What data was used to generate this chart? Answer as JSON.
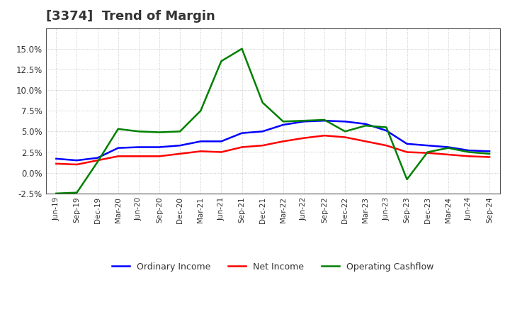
{
  "title": "[3374]  Trend of Margin",
  "x_labels": [
    "Jun-19",
    "Sep-19",
    "Dec-19",
    "Mar-20",
    "Jun-20",
    "Sep-20",
    "Dec-20",
    "Mar-21",
    "Jun-21",
    "Sep-21",
    "Dec-21",
    "Mar-22",
    "Jun-22",
    "Sep-22",
    "Dec-22",
    "Mar-23",
    "Jun-23",
    "Sep-23",
    "Dec-23",
    "Mar-24",
    "Jun-24",
    "Sep-24"
  ],
  "ordinary_income": [
    1.7,
    1.5,
    1.8,
    3.0,
    3.1,
    3.1,
    3.3,
    3.8,
    3.8,
    4.8,
    5.0,
    5.8,
    6.2,
    6.3,
    6.2,
    5.9,
    5.1,
    3.5,
    3.3,
    3.1,
    2.7,
    2.6
  ],
  "net_income": [
    1.1,
    1.0,
    1.5,
    2.0,
    2.0,
    2.0,
    2.3,
    2.6,
    2.5,
    3.1,
    3.3,
    3.8,
    4.2,
    4.5,
    4.3,
    3.8,
    3.3,
    2.5,
    2.4,
    2.2,
    2.0,
    1.9
  ],
  "operating_cashflow": [
    -2.5,
    -2.4,
    1.3,
    5.3,
    5.0,
    4.9,
    5.0,
    7.5,
    13.5,
    15.0,
    8.5,
    6.2,
    6.3,
    6.4,
    5.0,
    5.7,
    5.5,
    -0.8,
    2.5,
    3.0,
    2.5,
    2.3
  ],
  "ordinary_income_color": "#0000ff",
  "net_income_color": "#ff0000",
  "operating_cashflow_color": "#008000",
  "ylim": [
    -2.5,
    17.5
  ],
  "yticks": [
    -2.5,
    0.0,
    2.5,
    5.0,
    7.5,
    10.0,
    12.5,
    15.0
  ],
  "background_color": "#ffffff",
  "grid_color": "#aaaaaa",
  "title_fontsize": 13,
  "title_color": "#333333",
  "tick_color": "#333333",
  "legend_labels": [
    "Ordinary Income",
    "Net Income",
    "Operating Cashflow"
  ]
}
